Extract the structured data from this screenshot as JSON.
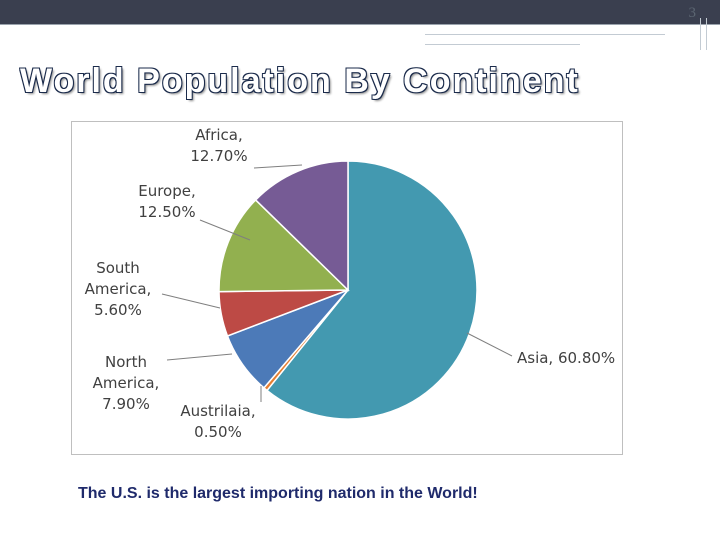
{
  "slide": {
    "page_number": "3",
    "title": "World Population By Continent",
    "caption": "The U.S. is the largest importing nation in the World!"
  },
  "chart_data": {
    "type": "pie",
    "title": "",
    "start_angle_deg": 0,
    "direction": "clockwise",
    "slices": [
      {
        "category": "Asia",
        "value": 60.8,
        "label_lines": [
          "Asia, 60.80%"
        ],
        "color": "#4399b0"
      },
      {
        "category": "Austrilaia",
        "value": 0.5,
        "label_lines": [
          "Austrilaia,",
          "0.50%"
        ],
        "color": "#e57f32"
      },
      {
        "category": "North America",
        "value": 7.9,
        "label_lines": [
          "North",
          "America,",
          "7.90%"
        ],
        "color": "#4c7ab8"
      },
      {
        "category": "South America",
        "value": 5.6,
        "label_lines": [
          "South",
          "America,",
          "5.60%"
        ],
        "color": "#bd4a45"
      },
      {
        "category": "Europe",
        "value": 12.5,
        "label_lines": [
          "Europe,",
          "12.50%"
        ],
        "color": "#92b04f"
      },
      {
        "category": "Africa",
        "value": 12.7,
        "label_lines": [
          "Africa,",
          "12.70%"
        ],
        "color": "#765b95"
      }
    ]
  }
}
